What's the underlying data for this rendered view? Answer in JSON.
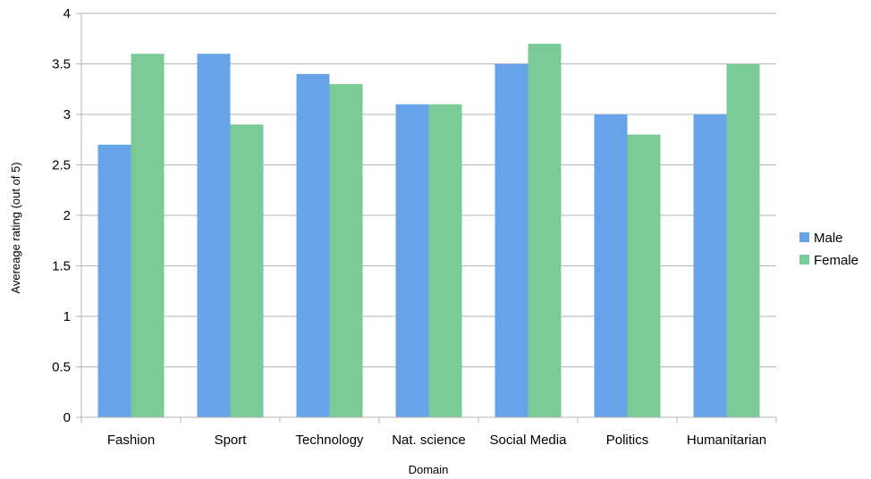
{
  "chart_data": {
    "type": "bar",
    "title": "",
    "xlabel": "Domain",
    "ylabel": "Avereage rating  (out of 5)",
    "categories": [
      "Fashion",
      "Sport",
      "Technology",
      "Nat. science",
      "Social Media",
      "Politics",
      "Humanitarian"
    ],
    "series": [
      {
        "name": "Male",
        "values": [
          2.7,
          3.6,
          3.4,
          3.1,
          3.5,
          3.0,
          3.0
        ]
      },
      {
        "name": "Female",
        "values": [
          3.6,
          2.9,
          3.3,
          3.1,
          3.7,
          2.8,
          3.5
        ]
      }
    ],
    "ylim": [
      0,
      4
    ],
    "yticks": [
      0,
      0.5,
      1,
      1.5,
      2,
      2.5,
      3,
      3.5,
      4
    ],
    "ytick_labels": [
      "0",
      "0.5",
      "1",
      "1.5",
      "2",
      "2.5",
      "3",
      "3.5",
      "4"
    ],
    "grid": true,
    "legend_position": "right",
    "colors": {
      "Male": "#66a3e8",
      "Female": "#7acb96",
      "grid": "#b3b3b3",
      "axis": "#b3b3b3"
    }
  }
}
